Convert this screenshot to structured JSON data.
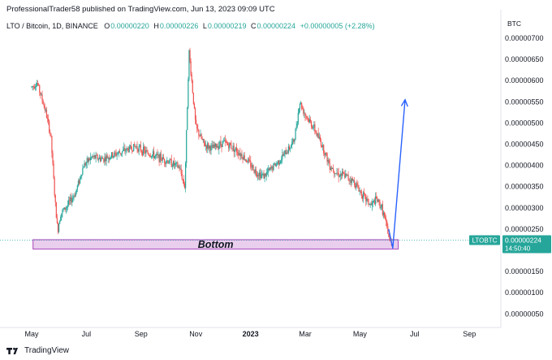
{
  "header": {
    "published": "ProfessionalTrader58 published on TradingView.com, Jun 13, 2023 09:09 UTC"
  },
  "legend": {
    "symbol": "LTO / Bitcoin, 1D, BINANCE",
    "o_label": "O",
    "o_value": "0.00000220",
    "h_label": "H",
    "h_value": "0.00000226",
    "l_label": "L",
    "l_value": "0.00000219",
    "c_label": "C",
    "c_value": "0.00000224",
    "change": "+0.00000005 (+2.28%)"
  },
  "footer": {
    "brand": "TradingView"
  },
  "colors": {
    "up": "#26a69a",
    "down": "#ef5350",
    "arrow": "#2962ff",
    "zone_fill": "#e1bee7",
    "zone_border": "#ab47bc",
    "badge": "#26a69a"
  },
  "chart_data": {
    "type": "candlestick",
    "currency_label": "BTC",
    "y_ticks": [
      "0.00000700",
      "0.00000650",
      "0.00000600",
      "0.00000550",
      "0.00000500",
      "0.00000450",
      "0.00000400",
      "0.00000350",
      "0.00000300",
      "0.00000250",
      "0.00000150",
      "0.00000100",
      "0.00000050"
    ],
    "y_tick_values": [
      7.0,
      6.5,
      6.0,
      5.5,
      5.0,
      4.5,
      4.0,
      3.5,
      3.0,
      2.5,
      1.5,
      1.0,
      0.5
    ],
    "y_unit_note": "values ×1e-6 BTC",
    "x_ticks": [
      "May",
      "Jul",
      "Sep",
      "Nov",
      "2023",
      "Mar",
      "May",
      "Jul",
      "Sep"
    ],
    "x_tick_bold": [
      false,
      false,
      false,
      false,
      true,
      false,
      false,
      false,
      false
    ],
    "x_tick_month_index": [
      0,
      2,
      4,
      6,
      8,
      10,
      12,
      14,
      16
    ],
    "price_path": [
      [
        0,
        5.85
      ],
      [
        0.2,
        5.95
      ],
      [
        0.5,
        5.3
      ],
      [
        0.7,
        4.7
      ],
      [
        0.85,
        3.2
      ],
      [
        0.95,
        2.45
      ],
      [
        1.05,
        2.85
      ],
      [
        1.3,
        3.05
      ],
      [
        1.6,
        3.35
      ],
      [
        1.9,
        4.0
      ],
      [
        2.2,
        4.2
      ],
      [
        2.6,
        4.15
      ],
      [
        3.0,
        4.25
      ],
      [
        3.4,
        4.35
      ],
      [
        3.8,
        4.45
      ],
      [
        4.2,
        4.3
      ],
      [
        4.6,
        4.2
      ],
      [
        5.0,
        4.1
      ],
      [
        5.4,
        3.95
      ],
      [
        5.6,
        3.5
      ],
      [
        5.75,
        6.7
      ],
      [
        5.85,
        6.0
      ],
      [
        6.0,
        4.9
      ],
      [
        6.3,
        4.5
      ],
      [
        6.6,
        4.4
      ],
      [
        7.0,
        4.55
      ],
      [
        7.3,
        4.45
      ],
      [
        7.6,
        4.3
      ],
      [
        7.9,
        4.1
      ],
      [
        8.2,
        3.85
      ],
      [
        8.5,
        3.75
      ],
      [
        8.8,
        3.95
      ],
      [
        9.1,
        4.15
      ],
      [
        9.4,
        4.4
      ],
      [
        9.6,
        4.6
      ],
      [
        9.8,
        5.5
      ],
      [
        10.0,
        5.2
      ],
      [
        10.3,
        4.9
      ],
      [
        10.6,
        4.5
      ],
      [
        10.9,
        4.0
      ],
      [
        11.2,
        3.8
      ],
      [
        11.5,
        3.75
      ],
      [
        11.8,
        3.6
      ],
      [
        12.1,
        3.3
      ],
      [
        12.4,
        3.05
      ],
      [
        12.6,
        3.2
      ],
      [
        12.8,
        3.0
      ],
      [
        13.0,
        2.5
      ],
      [
        13.1,
        2.15
      ],
      [
        13.15,
        2.24
      ]
    ],
    "candle_count": 410,
    "bottom_zone": {
      "label": "Bottom",
      "price_low": 2.03,
      "price_high": 2.25,
      "month_start": 0.05,
      "month_end": 13.4
    },
    "projection": {
      "price_points": [
        [
          13.05,
          2.5
        ],
        [
          13.2,
          2.05
        ],
        [
          13.65,
          5.55
        ]
      ]
    },
    "current_price": {
      "symbol": "LTOBTC",
      "value": "0.00000224",
      "countdown": "14:50:40",
      "price": 2.24
    }
  }
}
